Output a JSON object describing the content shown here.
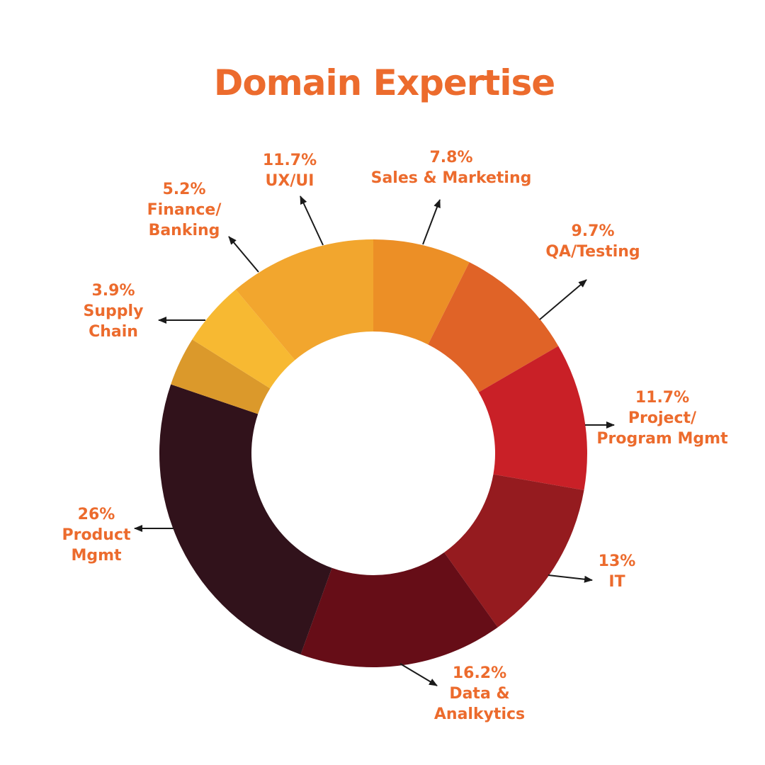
{
  "colors": {
    "label": "#ec6b2d",
    "arrow": "#1a1a1a",
    "background": "#ffffff"
  },
  "chart_data": {
    "type": "pie",
    "variant": "donut",
    "title": "Domain Expertise",
    "slices": [
      {
        "value": 7.8,
        "percent_label": "7.8%",
        "label_lines": [
          "Sales & Marketing"
        ],
        "color": "#ec8f26"
      },
      {
        "value": 9.7,
        "percent_label": "9.7%",
        "label_lines": [
          "QA/Testing"
        ],
        "color": "#e06327"
      },
      {
        "value": 11.7,
        "percent_label": "11.7%",
        "label_lines": [
          "Project/",
          "Program Mgmt"
        ],
        "color": "#c92027"
      },
      {
        "value": 13,
        "percent_label": "13%",
        "label_lines": [
          "IT"
        ],
        "color": "#951b1f"
      },
      {
        "value": 16.2,
        "percent_label": "16.2%",
        "label_lines": [
          "Data &",
          "Analkytics"
        ],
        "color": "#660d17"
      },
      {
        "value": 26,
        "percent_label": "26%",
        "label_lines": [
          "Product",
          "Mgmt"
        ],
        "color": "#31121b"
      },
      {
        "value": 3.9,
        "percent_label": "3.9%",
        "label_lines": [
          "Supply",
          "Chain"
        ],
        "color": "#db992b"
      },
      {
        "value": 5.2,
        "percent_label": "5.2%",
        "label_lines": [
          "Finance/",
          "Banking"
        ],
        "color": "#f7b932"
      },
      {
        "value": 11.7,
        "percent_label": "11.7%",
        "label_lines": [
          "UX/UI"
        ],
        "color": "#f2a62e"
      }
    ],
    "start_angle_deg": 0,
    "direction": "clockwise",
    "legend": "none",
    "labels": "outside with arrows"
  }
}
